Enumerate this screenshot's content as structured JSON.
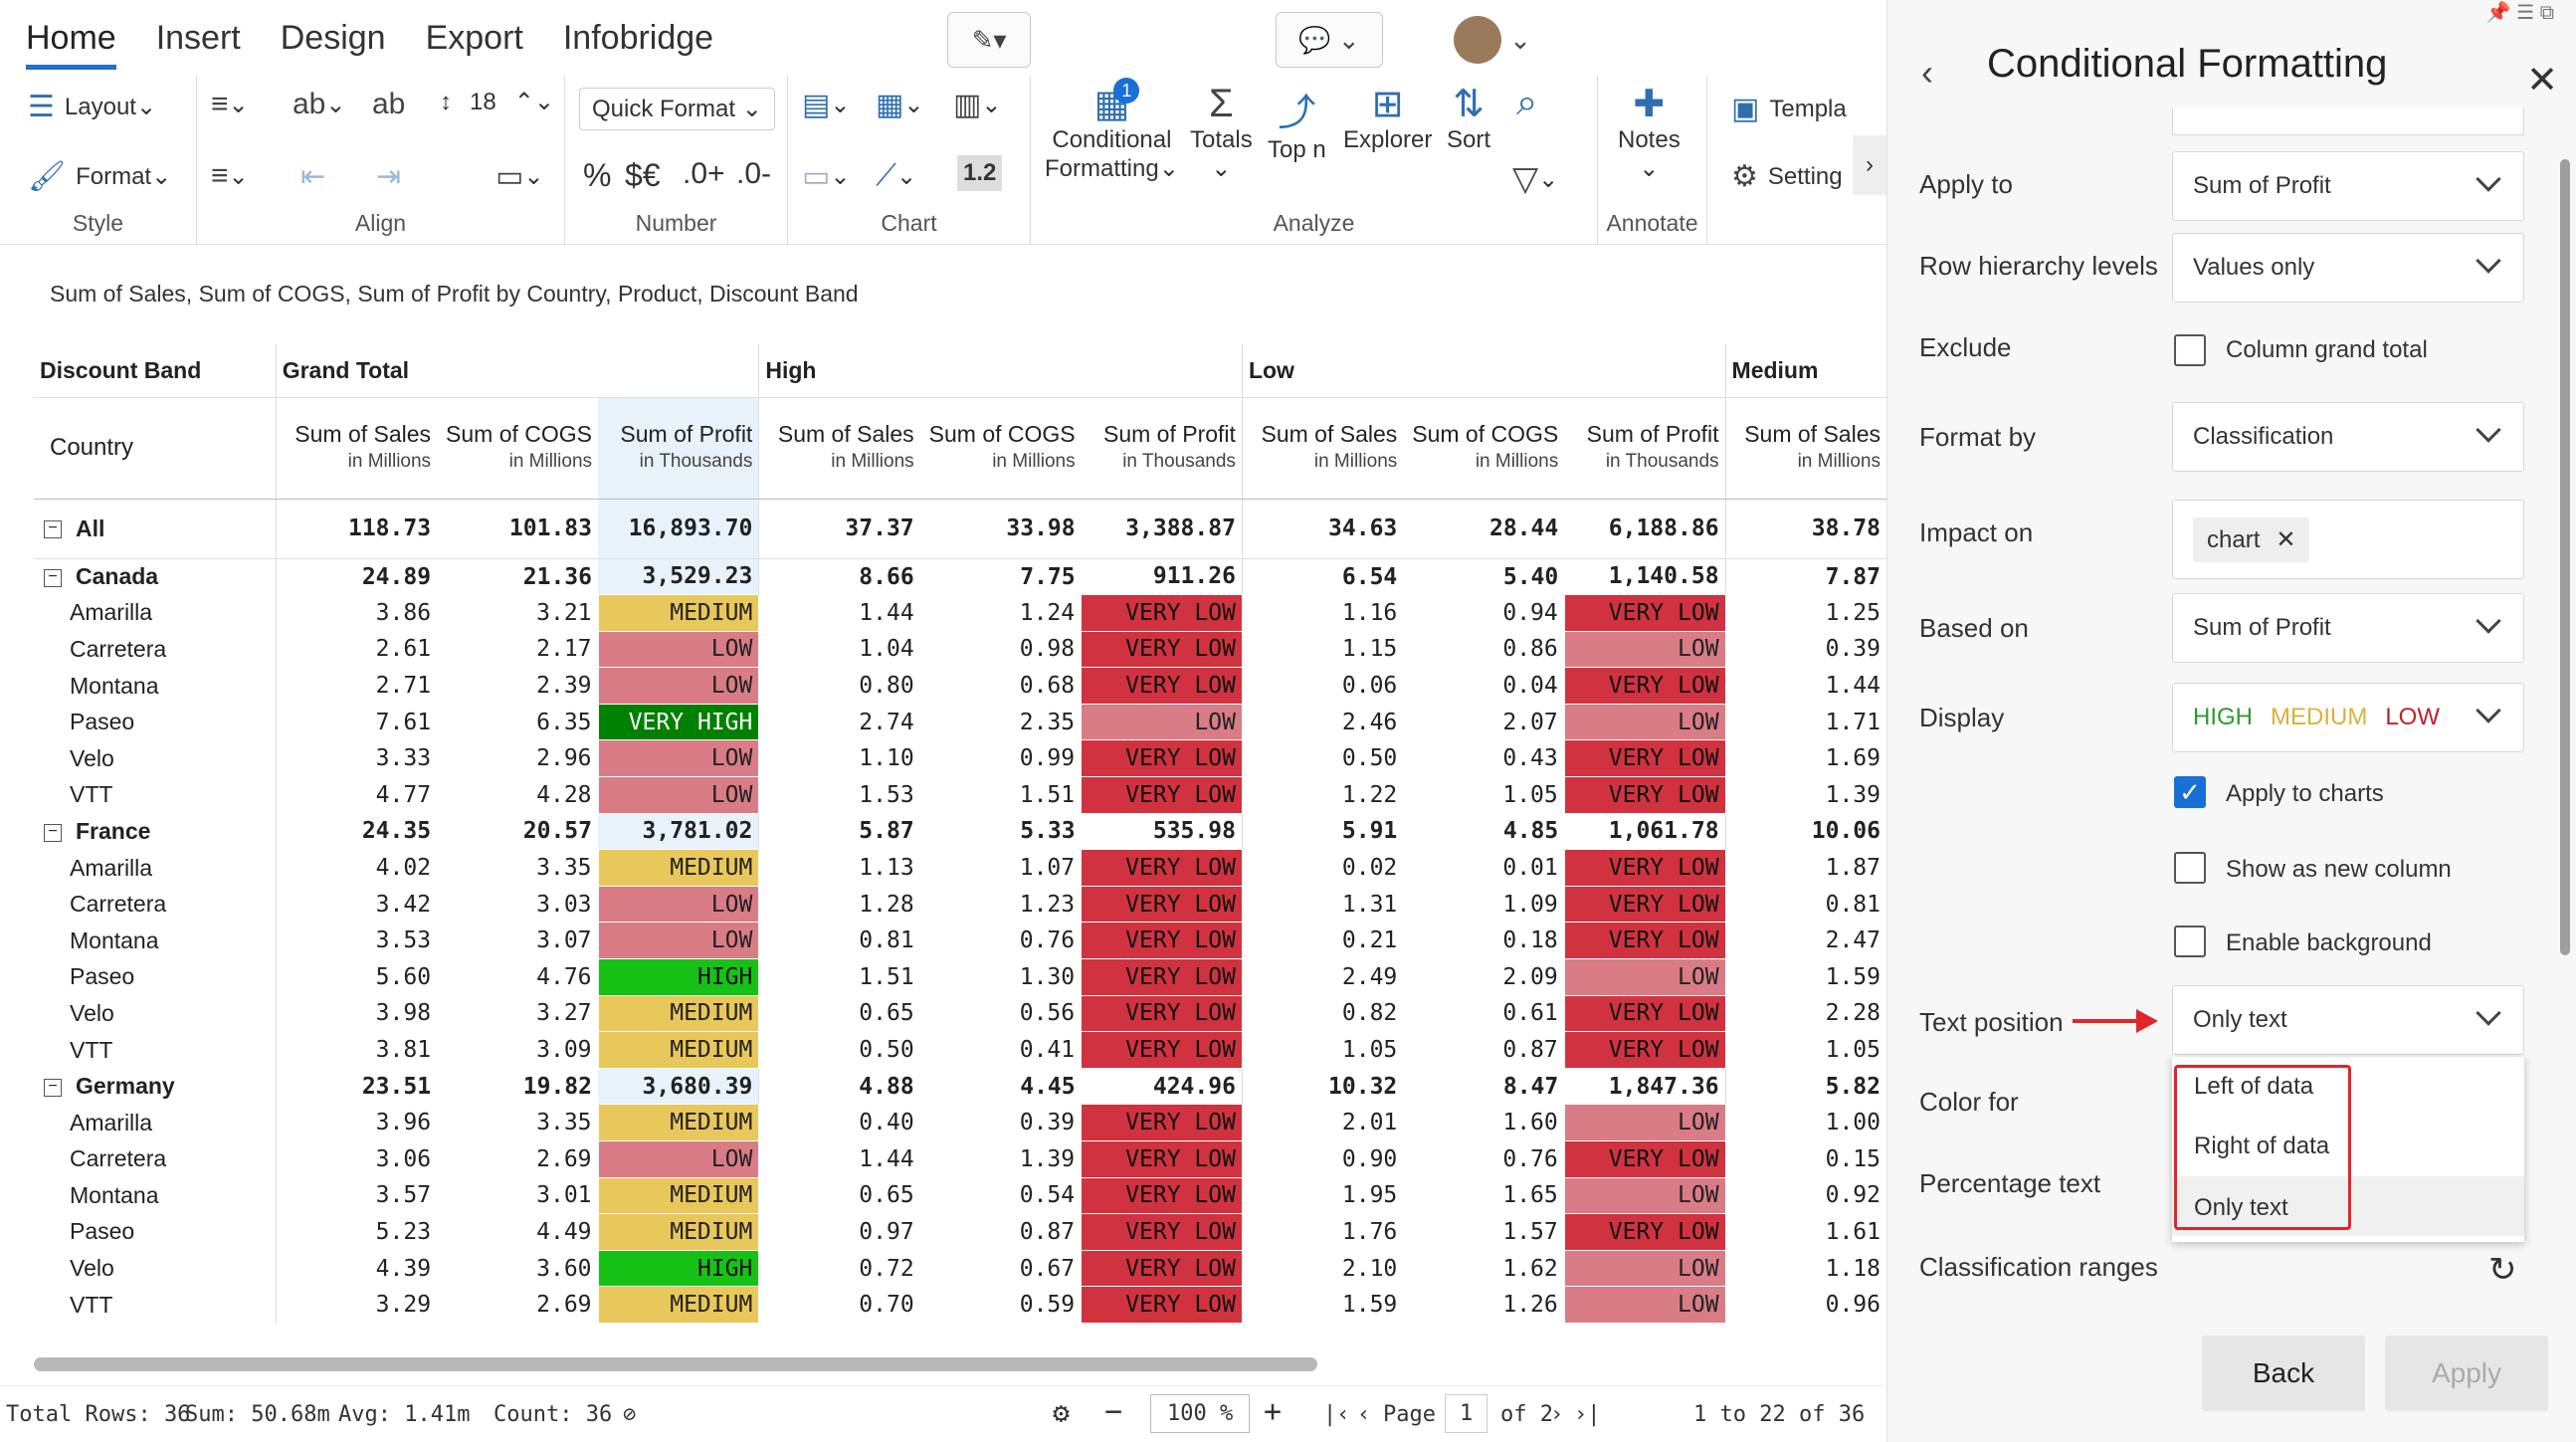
{
  "tabs": [
    "Home",
    "Insert",
    "Design",
    "Export",
    "Infobridge"
  ],
  "ribbon": {
    "style": {
      "layout": "Layout",
      "format": "Format",
      "label": "Style"
    },
    "align": {
      "label": "Align",
      "font_size": "18"
    },
    "number": {
      "quick_format": "Quick Format",
      "label": "Number",
      "percent": "%",
      "currency": "$€",
      "dec_inc": ".0+",
      "dec_dec": ".0-"
    },
    "chart": {
      "label": "Chart",
      "scale": "1.2"
    },
    "analyze": {
      "conditional": "Conditional",
      "formatting": "Formatting",
      "totals": "Totals",
      "topn": "Top n",
      "explorer": "Explorer",
      "sort": "Sort",
      "label": "Analyze",
      "badge": "1"
    },
    "annotate": {
      "notes": "Notes",
      "label": "Annotate"
    },
    "extra": {
      "templates": "Templa",
      "settings": "Setting"
    }
  },
  "subtitle": "Sum of Sales, Sum of COGS, Sum of Profit by Country, Product, Discount Band",
  "grid": {
    "discount_band": "Discount Band",
    "country": "Country",
    "groups": [
      "Grand Total",
      "High",
      "Low",
      "Medium"
    ],
    "col_headers": [
      {
        "name": "Sum of Sales",
        "unit": "in Millions"
      },
      {
        "name": "Sum of COGS",
        "unit": "in Millions"
      },
      {
        "name": "Sum of Profit",
        "unit": "in Thousands"
      },
      {
        "name": "Sum of Sales",
        "unit": "in Millions"
      },
      {
        "name": "Sum of COGS",
        "unit": "in Millions"
      },
      {
        "name": "Sum of Profit",
        "unit": "in Thousands"
      },
      {
        "name": "Sum of Sales",
        "unit": "in Millions"
      },
      {
        "name": "Sum of COGS",
        "unit": "in Millions"
      },
      {
        "name": "Sum of Profit",
        "unit": "in Thousands"
      },
      {
        "name": "Sum of Sales",
        "unit": "in Millions"
      }
    ],
    "rows": [
      {
        "label": "All",
        "type": "all",
        "cells": [
          "118.73",
          "101.83",
          "16,893.70",
          "37.37",
          "33.98",
          "3,388.87",
          "34.63",
          "28.44",
          "6,188.86",
          "38.78"
        ]
      },
      {
        "label": "Canada",
        "type": "grp",
        "cells": [
          "24.89",
          "21.36",
          "3,529.23",
          "8.66",
          "7.75",
          "911.26",
          "6.54",
          "5.40",
          "1,140.58",
          "7.87"
        ]
      },
      {
        "label": "Amarilla",
        "cells": [
          "3.86",
          "3.21",
          "MEDIUM",
          "1.44",
          "1.24",
          "VERY LOW",
          "1.16",
          "0.94",
          "VERY LOW",
          "1.25"
        ],
        "cls": [
          "",
          "",
          "m",
          "",
          "",
          "vl",
          "",
          "",
          "vl",
          ""
        ]
      },
      {
        "label": "Carretera",
        "cells": [
          "2.61",
          "2.17",
          "LOW",
          "1.04",
          "0.98",
          "VERY LOW",
          "1.15",
          "0.86",
          "LOW",
          "0.39"
        ],
        "cls": [
          "",
          "",
          "l",
          "",
          "",
          "vl",
          "",
          "",
          "l",
          ""
        ]
      },
      {
        "label": "Montana",
        "cells": [
          "2.71",
          "2.39",
          "LOW",
          "0.80",
          "0.68",
          "VERY LOW",
          "0.06",
          "0.04",
          "VERY LOW",
          "1.44"
        ],
        "cls": [
          "",
          "",
          "l",
          "",
          "",
          "vl",
          "",
          "",
          "vl",
          ""
        ]
      },
      {
        "label": "Paseo",
        "cells": [
          "7.61",
          "6.35",
          "VERY HIGH",
          "2.74",
          "2.35",
          "LOW",
          "2.46",
          "2.07",
          "LOW",
          "1.71"
        ],
        "cls": [
          "",
          "",
          "vh",
          "",
          "",
          "l",
          "",
          "",
          "l",
          ""
        ]
      },
      {
        "label": "Velo",
        "cells": [
          "3.33",
          "2.96",
          "LOW",
          "1.10",
          "0.99",
          "VERY LOW",
          "0.50",
          "0.43",
          "VERY LOW",
          "1.69"
        ],
        "cls": [
          "",
          "",
          "l",
          "",
          "",
          "vl",
          "",
          "",
          "vl",
          ""
        ]
      },
      {
        "label": "VTT",
        "cells": [
          "4.77",
          "4.28",
          "LOW",
          "1.53",
          "1.51",
          "VERY LOW",
          "1.22",
          "1.05",
          "VERY LOW",
          "1.39"
        ],
        "cls": [
          "",
          "",
          "l",
          "",
          "",
          "vl",
          "",
          "",
          "vl",
          ""
        ]
      },
      {
        "label": "France",
        "type": "grp",
        "cells": [
          "24.35",
          "20.57",
          "3,781.02",
          "5.87",
          "5.33",
          "535.98",
          "5.91",
          "4.85",
          "1,061.78",
          "10.06"
        ]
      },
      {
        "label": "Amarilla",
        "cells": [
          "4.02",
          "3.35",
          "MEDIUM",
          "1.13",
          "1.07",
          "VERY LOW",
          "0.02",
          "0.01",
          "VERY LOW",
          "1.87"
        ],
        "cls": [
          "",
          "",
          "m",
          "",
          "",
          "vl",
          "",
          "",
          "vl",
          ""
        ]
      },
      {
        "label": "Carretera",
        "cells": [
          "3.42",
          "3.03",
          "LOW",
          "1.28",
          "1.23",
          "VERY LOW",
          "1.31",
          "1.09",
          "VERY LOW",
          "0.81"
        ],
        "cls": [
          "",
          "",
          "l",
          "",
          "",
          "vl",
          "",
          "",
          "vl",
          ""
        ]
      },
      {
        "label": "Montana",
        "cells": [
          "3.53",
          "3.07",
          "LOW",
          "0.81",
          "0.76",
          "VERY LOW",
          "0.21",
          "0.18",
          "VERY LOW",
          "2.47"
        ],
        "cls": [
          "",
          "",
          "l",
          "",
          "",
          "vl",
          "",
          "",
          "vl",
          ""
        ]
      },
      {
        "label": "Paseo",
        "cells": [
          "5.60",
          "4.76",
          "HIGH",
          "1.51",
          "1.30",
          "VERY LOW",
          "2.49",
          "2.09",
          "LOW",
          "1.59"
        ],
        "cls": [
          "",
          "",
          "h",
          "",
          "",
          "vl",
          "",
          "",
          "l",
          ""
        ]
      },
      {
        "label": "Velo",
        "cells": [
          "3.98",
          "3.27",
          "MEDIUM",
          "0.65",
          "0.56",
          "VERY LOW",
          "0.82",
          "0.61",
          "VERY LOW",
          "2.28"
        ],
        "cls": [
          "",
          "",
          "m",
          "",
          "",
          "vl",
          "",
          "",
          "vl",
          ""
        ]
      },
      {
        "label": "VTT",
        "cells": [
          "3.81",
          "3.09",
          "MEDIUM",
          "0.50",
          "0.41",
          "VERY LOW",
          "1.05",
          "0.87",
          "VERY LOW",
          "1.05"
        ],
        "cls": [
          "",
          "",
          "m",
          "",
          "",
          "vl",
          "",
          "",
          "vl",
          ""
        ]
      },
      {
        "label": "Germany",
        "type": "grp",
        "cells": [
          "23.51",
          "19.82",
          "3,680.39",
          "4.88",
          "4.45",
          "424.96",
          "10.32",
          "8.47",
          "1,847.36",
          "5.82"
        ]
      },
      {
        "label": "Amarilla",
        "cells": [
          "3.96",
          "3.35",
          "MEDIUM",
          "0.40",
          "0.39",
          "VERY LOW",
          "2.01",
          "1.60",
          "LOW",
          "1.00"
        ],
        "cls": [
          "",
          "",
          "m",
          "",
          "",
          "vl",
          "",
          "",
          "l",
          ""
        ]
      },
      {
        "label": "Carretera",
        "cells": [
          "3.06",
          "2.69",
          "LOW",
          "1.44",
          "1.39",
          "VERY LOW",
          "0.90",
          "0.76",
          "VERY LOW",
          "0.15"
        ],
        "cls": [
          "",
          "",
          "l",
          "",
          "",
          "vl",
          "",
          "",
          "vl",
          ""
        ]
      },
      {
        "label": "Montana",
        "cells": [
          "3.57",
          "3.01",
          "MEDIUM",
          "0.65",
          "0.54",
          "VERY LOW",
          "1.95",
          "1.65",
          "LOW",
          "0.92"
        ],
        "cls": [
          "",
          "",
          "m",
          "",
          "",
          "vl",
          "",
          "",
          "l",
          ""
        ]
      },
      {
        "label": "Paseo",
        "cells": [
          "5.23",
          "4.49",
          "MEDIUM",
          "0.97",
          "0.87",
          "VERY LOW",
          "1.76",
          "1.57",
          "VERY LOW",
          "1.61"
        ],
        "cls": [
          "",
          "",
          "m",
          "",
          "",
          "vl",
          "",
          "",
          "vl",
          ""
        ]
      },
      {
        "label": "Velo",
        "cells": [
          "4.39",
          "3.60",
          "HIGH",
          "0.72",
          "0.67",
          "VERY LOW",
          "2.10",
          "1.62",
          "LOW",
          "1.18"
        ],
        "cls": [
          "",
          "",
          "h",
          "",
          "",
          "vl",
          "",
          "",
          "l",
          ""
        ]
      },
      {
        "label": "VTT",
        "cells": [
          "3.29",
          "2.69",
          "MEDIUM",
          "0.70",
          "0.59",
          "VERY LOW",
          "1.59",
          "1.26",
          "LOW",
          "0.96"
        ],
        "cls": [
          "",
          "",
          "m",
          "",
          "",
          "vl",
          "",
          "",
          "l",
          ""
        ]
      }
    ]
  },
  "status": {
    "total_rows": "Total Rows: 36",
    "sum": "Sum: 50.68m",
    "avg": "Avg: 1.41m",
    "count": "Count: 36",
    "zoom": "100 %",
    "page_label": "Page",
    "page": "1",
    "of": "of 2",
    "range": "1 to 22 of 36"
  },
  "panel": {
    "title": "Conditional Formatting",
    "apply_to": {
      "label": "Apply to",
      "value": "Sum of Profit"
    },
    "row_hierarchy": {
      "label": "Row hierarchy levels",
      "value": "Values only"
    },
    "exclude": {
      "label": "Exclude",
      "option": "Column grand total"
    },
    "format_by": {
      "label": "Format by",
      "value": "Classification"
    },
    "impact_on": {
      "label": "Impact on",
      "chip": "chart"
    },
    "based_on": {
      "label": "Based on",
      "value": "Sum of Profit"
    },
    "display": {
      "label": "Display",
      "high": "HIGH",
      "medium": "MEDIUM",
      "low": "LOW"
    },
    "apply_charts": "Apply to charts",
    "new_column": "Show as new column",
    "enable_bg": "Enable background",
    "text_position": {
      "label": "Text position",
      "value": "Only text",
      "options": [
        "Left of data",
        "Right of data",
        "Only text"
      ]
    },
    "color_for": "Color for",
    "percentage_text": "Percentage text",
    "class_ranges": "Classification ranges",
    "back": "Back",
    "apply": "Apply"
  },
  "colors": {
    "very_high": "#008000",
    "high": "#16c216",
    "medium": "#e8c75b",
    "low": "#d97c86",
    "very_low": "#d0333f",
    "accent": "#1a6fd6",
    "highlight": "#e0262c"
  }
}
